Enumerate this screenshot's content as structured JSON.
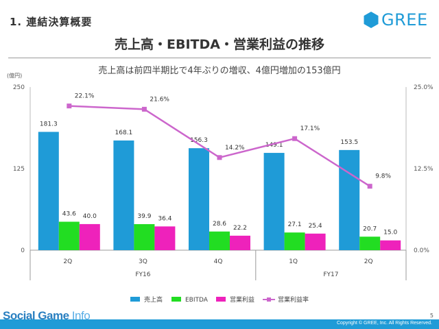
{
  "header": {
    "section_title": "1. 連結決算概要",
    "logo_text": "GREE",
    "main_title": "売上高・EBITDA・営業利益の推移",
    "subtitle": "売上高は前四半期比で4年ぶりの増収、4億円増加の153億円"
  },
  "chart_data": {
    "type": "bar",
    "unit_label": "(億円)",
    "categories": [
      "2Q",
      "3Q",
      "4Q",
      "1Q",
      "2Q"
    ],
    "groups": [
      {
        "label": "FY16",
        "categories": [
          "2Q",
          "3Q",
          "4Q"
        ]
      },
      {
        "label": "FY17",
        "categories": [
          "1Q",
          "2Q"
        ]
      }
    ],
    "series": [
      {
        "name": "売上高",
        "type": "bar",
        "color": "#1f9bd7",
        "values": [
          181.3,
          168.1,
          156.3,
          149.1,
          153.5
        ],
        "labels": [
          "181.3",
          "168.1",
          "156.3",
          "149.1",
          "153.5"
        ]
      },
      {
        "name": "EBITDA",
        "type": "bar",
        "color": "#22dd22",
        "values": [
          43.6,
          39.9,
          28.6,
          27.1,
          20.7
        ],
        "labels": [
          "43.6",
          "39.9",
          "28.6",
          "27.1",
          "20.7"
        ]
      },
      {
        "name": "営業利益",
        "type": "bar",
        "color": "#ee22bb",
        "values": [
          40.0,
          36.4,
          22.2,
          25.4,
          15.0
        ],
        "labels": [
          "40.0",
          "36.4",
          "22.2",
          "25.4",
          "15.0"
        ]
      },
      {
        "name": "営業利益率",
        "type": "line",
        "axis": "right",
        "color": "#cc66cc",
        "values": [
          22.1,
          21.6,
          14.2,
          17.1,
          9.8
        ],
        "labels": [
          "22.1%",
          "21.6%",
          "14.2%",
          "17.1%",
          "9.8%"
        ]
      }
    ],
    "y_left": {
      "min": 0,
      "max": 250,
      "ticks": [
        0,
        125,
        250
      ],
      "tick_labels": [
        "0",
        "125",
        "250"
      ]
    },
    "y_right": {
      "min": 0,
      "max": 25,
      "ticks": [
        0,
        12.5,
        25
      ],
      "tick_labels": [
        "0.0%",
        "12.5%",
        "25.0%"
      ]
    },
    "legend_position": "bottom"
  },
  "footer": {
    "watermark_a": "Social Game",
    "watermark_b": "Info",
    "copyright": "Copyright © GREE, Inc. All Rights Reserved.",
    "page_number": "5"
  }
}
